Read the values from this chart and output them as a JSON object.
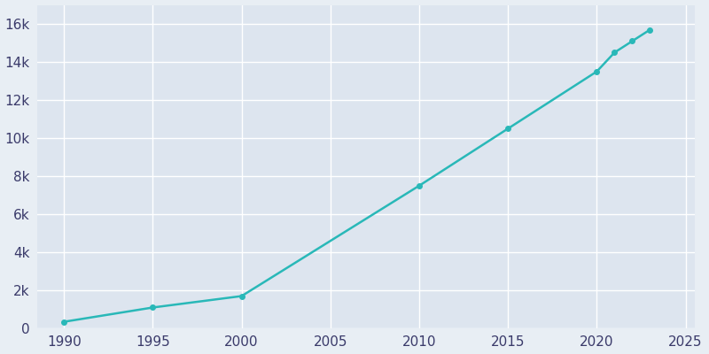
{
  "years": [
    1990,
    1995,
    2000,
    2010,
    2015,
    2020,
    2021,
    2022,
    2023
  ],
  "population": [
    350,
    1100,
    1700,
    7500,
    10500,
    13500,
    14500,
    15100,
    15700
  ],
  "line_color": "#29B8B8",
  "marker_color": "#29B8B8",
  "background_color": "#E8EEF4",
  "plot_bg_color": "#DDE5EF",
  "grid_color": "#FFFFFF",
  "tick_color": "#3A3A6A",
  "xlim": [
    1988.5,
    2025.5
  ],
  "ylim": [
    0,
    17000
  ],
  "yticks": [
    0,
    2000,
    4000,
    6000,
    8000,
    10000,
    12000,
    14000,
    16000
  ],
  "ytick_labels": [
    "0",
    "2k",
    "4k",
    "6k",
    "8k",
    "10k",
    "12k",
    "14k",
    "16k"
  ],
  "xticks": [
    1990,
    1995,
    2000,
    2005,
    2010,
    2015,
    2020,
    2025
  ],
  "linewidth": 1.8,
  "markersize": 4,
  "tick_fontsize": 11
}
